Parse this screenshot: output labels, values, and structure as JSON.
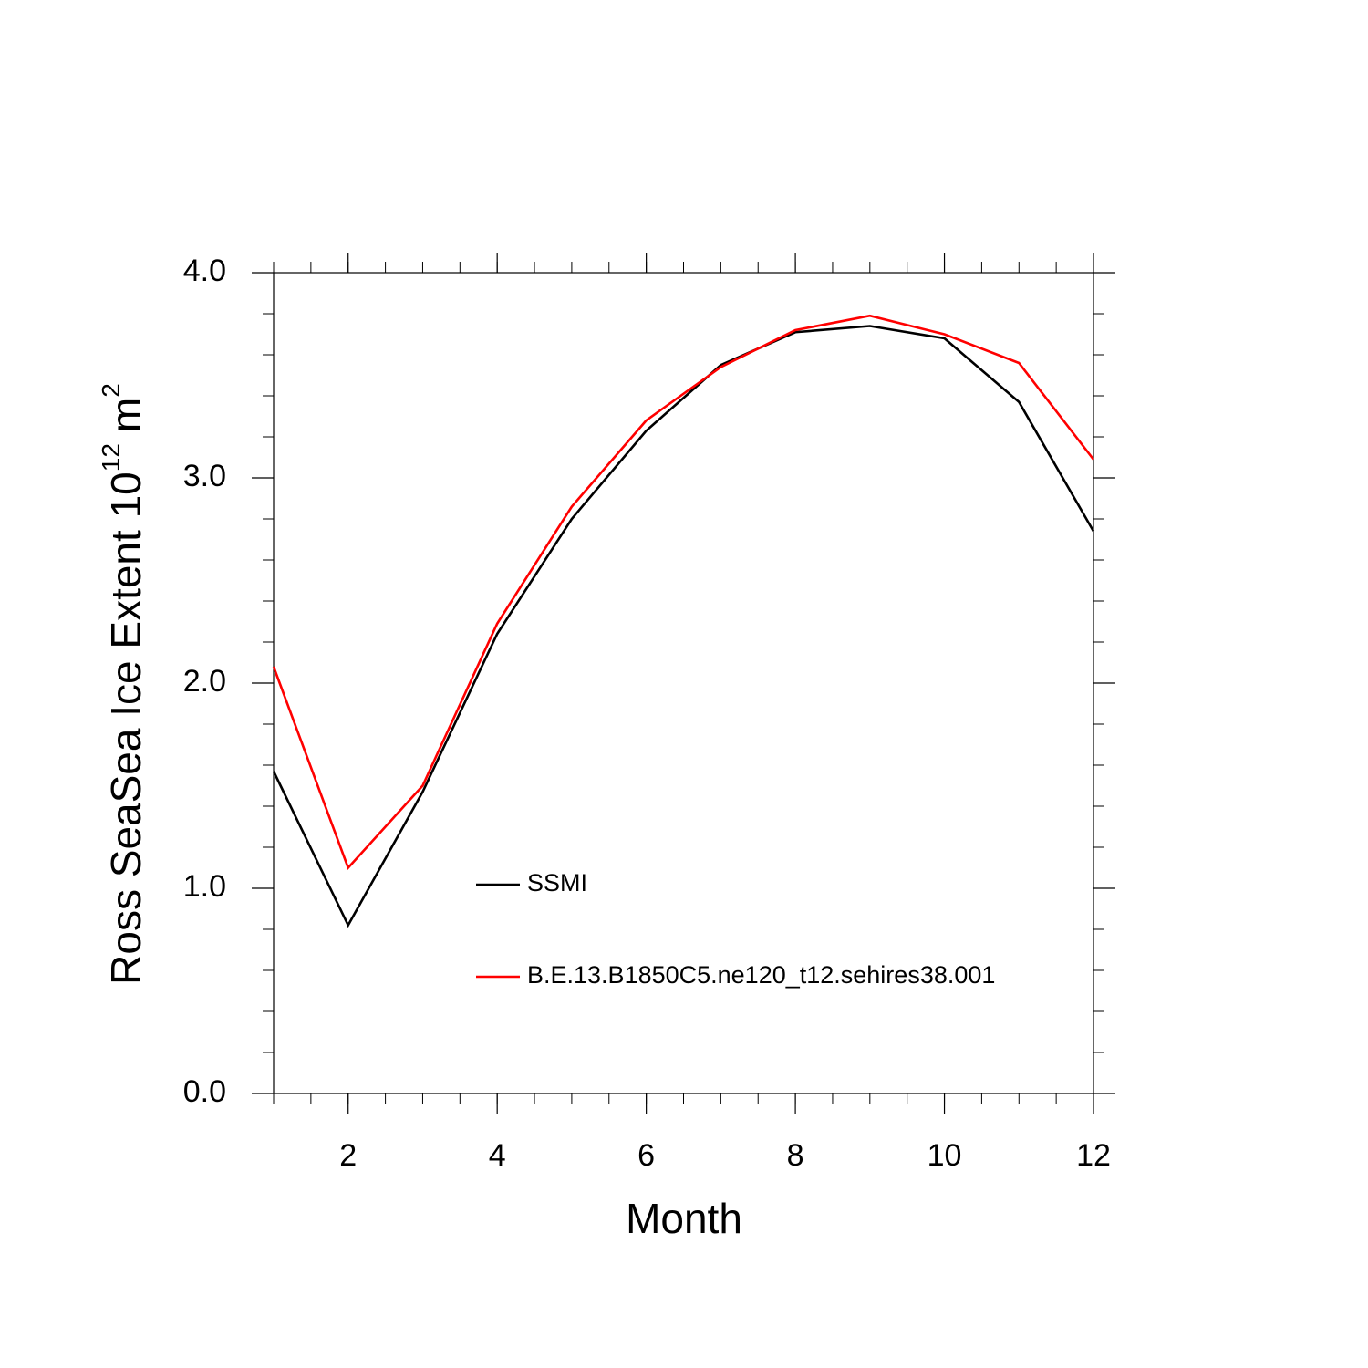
{
  "chart_data": {
    "type": "line",
    "xlabel": "Month",
    "ylabel": {
      "base": "Ross SeaSea Ice Extent 10",
      "base_exponent": "12",
      "unit": "m",
      "unit_exponent": "2"
    },
    "x": [
      1,
      2,
      3,
      4,
      5,
      6,
      7,
      8,
      9,
      10,
      11,
      12
    ],
    "series": [
      {
        "name": "SSMI",
        "color": "#000000",
        "values": [
          1.57,
          0.82,
          1.47,
          2.24,
          2.8,
          3.23,
          3.55,
          3.71,
          3.74,
          3.68,
          3.37,
          2.74
        ]
      },
      {
        "name": "B.E.13.B1850C5.ne120_t12.sehires38.001",
        "color": "#ff0000",
        "values": [
          2.08,
          1.1,
          1.5,
          2.29,
          2.86,
          3.28,
          3.54,
          3.72,
          3.79,
          3.7,
          3.56,
          3.09
        ]
      }
    ],
    "xlim": [
      1,
      12
    ],
    "xticks": [
      2,
      4,
      6,
      8,
      10,
      12
    ],
    "ylim": [
      0,
      4
    ],
    "yticks": [
      {
        "value": 0,
        "label": "0.0"
      },
      {
        "value": 1,
        "label": "1.0"
      },
      {
        "value": 2,
        "label": "2.0"
      },
      {
        "value": 3,
        "label": "3.0"
      },
      {
        "value": 4,
        "label": "4.0"
      }
    ]
  }
}
